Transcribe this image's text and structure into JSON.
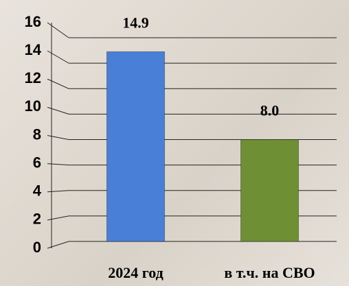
{
  "chart_data": {
    "type": "bar",
    "categories": [
      "2024 год",
      "в т.ч. на СВО"
    ],
    "values": [
      14.9,
      8.0
    ],
    "value_labels": [
      "14.9",
      "8.0"
    ],
    "colors": [
      "#4a7fd8",
      "#6f8f34"
    ],
    "ylim": [
      0,
      16
    ],
    "yticks": [
      0,
      2,
      4,
      6,
      8,
      10,
      12,
      14,
      16
    ],
    "grid": true
  }
}
